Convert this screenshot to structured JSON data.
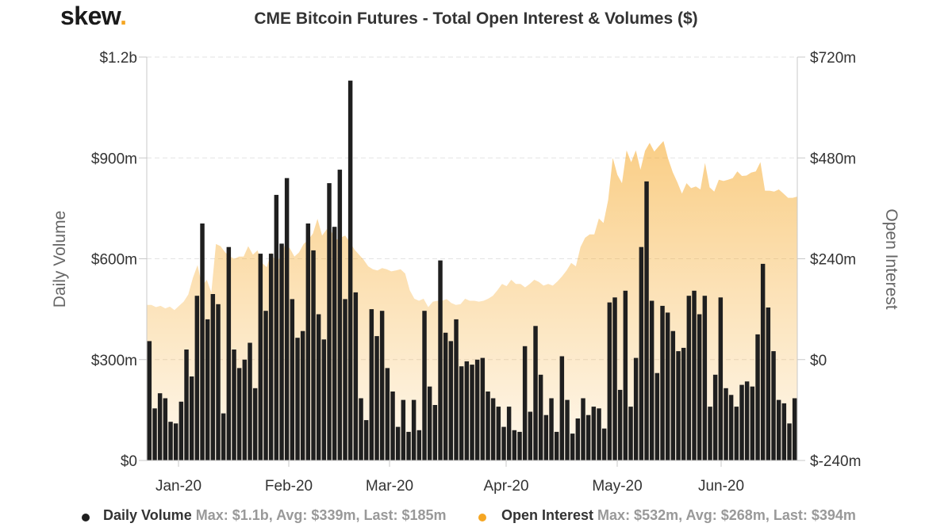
{
  "logo": {
    "text": "skew",
    "dot": ".",
    "dot_color": "#f5a623"
  },
  "header": {
    "title": "CME Bitcoin Futures - Total Open Interest & Volumes ($)"
  },
  "legend": [
    {
      "name": "Daily Volume",
      "stats": "Max: $1.1b, Avg: $339m, Last: $185m",
      "color": "#1f1f1f"
    },
    {
      "name": "Open Interest",
      "stats": "Max: $532m, Avg: $268m, Last: $394m",
      "color": "#f5a623"
    }
  ],
  "chart_data": {
    "type": "bar",
    "title": "CME Bitcoin Futures - Total Open Interest & Volumes ($)",
    "x_tick_labels": [
      "Jan-20",
      "Feb-20",
      "Mar-20",
      "Apr-20",
      "May-20",
      "Jun-20"
    ],
    "left_axis": {
      "label": "Daily Volume",
      "unit": "$m",
      "range": [
        0,
        1200
      ],
      "tick_labels": [
        "$0",
        "$300m",
        "$600m",
        "$900m",
        "$1.2b"
      ]
    },
    "right_axis": {
      "label": "Open Interest",
      "unit": "$m",
      "range": [
        -240,
        720
      ],
      "tick_labels": [
        "$-240m",
        "$0",
        "$240m",
        "$480m",
        "$720m"
      ]
    },
    "grid": true,
    "legend_position": "bottom",
    "colors": {
      "volume": "#1f1f1f",
      "open_interest": "#f5a623"
    },
    "series": [
      {
        "name": "Daily Volume",
        "type": "bar",
        "axis": "left",
        "values": [
          355,
          155,
          200,
          185,
          115,
          110,
          175,
          330,
          250,
          490,
          705,
          420,
          495,
          465,
          140,
          635,
          330,
          275,
          300,
          350,
          215,
          615,
          445,
          615,
          790,
          645,
          840,
          480,
          365,
          385,
          705,
          625,
          435,
          360,
          825,
          695,
          865,
          480,
          1130,
          500,
          185,
          120,
          450,
          370,
          445,
          275,
          205,
          100,
          180,
          85,
          180,
          90,
          445,
          220,
          165,
          595,
          380,
          355,
          420,
          280,
          295,
          285,
          300,
          305,
          205,
          185,
          160,
          100,
          160,
          90,
          85,
          340,
          145,
          400,
          255,
          135,
          185,
          85,
          310,
          180,
          80,
          125,
          185,
          135,
          160,
          155,
          95,
          470,
          485,
          210,
          505,
          160,
          305,
          635,
          830,
          475,
          260,
          460,
          440,
          385,
          325,
          335,
          490,
          505,
          435,
          490,
          160,
          255,
          485,
          215,
          195,
          160,
          225,
          235,
          220,
          375,
          585,
          455,
          325,
          180,
          170,
          110,
          185
        ]
      },
      {
        "name": "Open Interest",
        "type": "area",
        "axis": "right",
        "values": [
          130,
          130,
          125,
          128,
          122,
          126,
          118,
          128,
          138,
          155,
          195,
          225,
          175,
          190,
          160,
          275,
          270,
          255,
          245,
          240,
          245,
          245,
          270,
          250,
          260,
          230,
          220,
          255,
          230,
          245,
          275,
          265,
          245,
          255,
          275,
          285,
          300,
          335,
          295,
          310,
          305,
          285,
          290,
          295,
          280,
          262,
          250,
          238,
          222,
          215,
          212,
          218,
          215,
          210,
          212,
          215,
          205,
          165,
          145,
          140,
          145,
          125,
          138,
          140,
          140,
          144,
          135,
          130,
          132,
          145,
          140,
          140,
          138,
          140,
          145,
          152,
          165,
          180,
          175,
          190,
          180,
          180,
          172,
          180,
          190,
          185,
          176,
          180,
          176,
          186,
          198,
          212,
          230,
          222,
          268,
          290,
          298,
          298,
          336,
          325,
          380,
          480,
          440,
          420,
          498,
          470,
          498,
          452,
          497,
          516,
          495,
          508,
          520,
          478,
          446,
          422,
          395,
          420,
          408,
          412,
          405,
          468,
          410,
          400,
          428,
          425,
          428,
          432,
          448,
          437,
          438,
          445,
          448,
          470,
          402,
          402,
          400,
          405,
          395,
          385,
          385,
          388
        ]
      }
    ]
  }
}
